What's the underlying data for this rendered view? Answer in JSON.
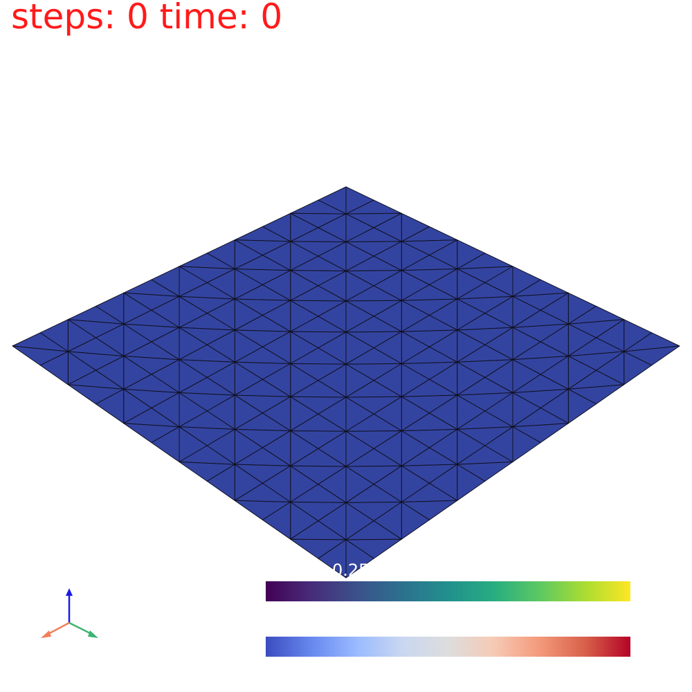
{
  "status": {
    "text": "steps: 0 time: 0"
  },
  "scalar_bar": {
    "label": "0.250"
  },
  "mesh": {
    "face_color": "#3344a0",
    "edge_color": "#111122",
    "subdivisions": 12
  },
  "colors": {
    "status_text": "#ff1a1a",
    "background": "#ffffff"
  },
  "colormaps": [
    "viridis",
    "coolwarm"
  ],
  "axes": {
    "icon": "xyz-axes-icon",
    "x_color": "#f0805a",
    "y_color": "#3cb371",
    "z_color": "#1a1ae6"
  }
}
